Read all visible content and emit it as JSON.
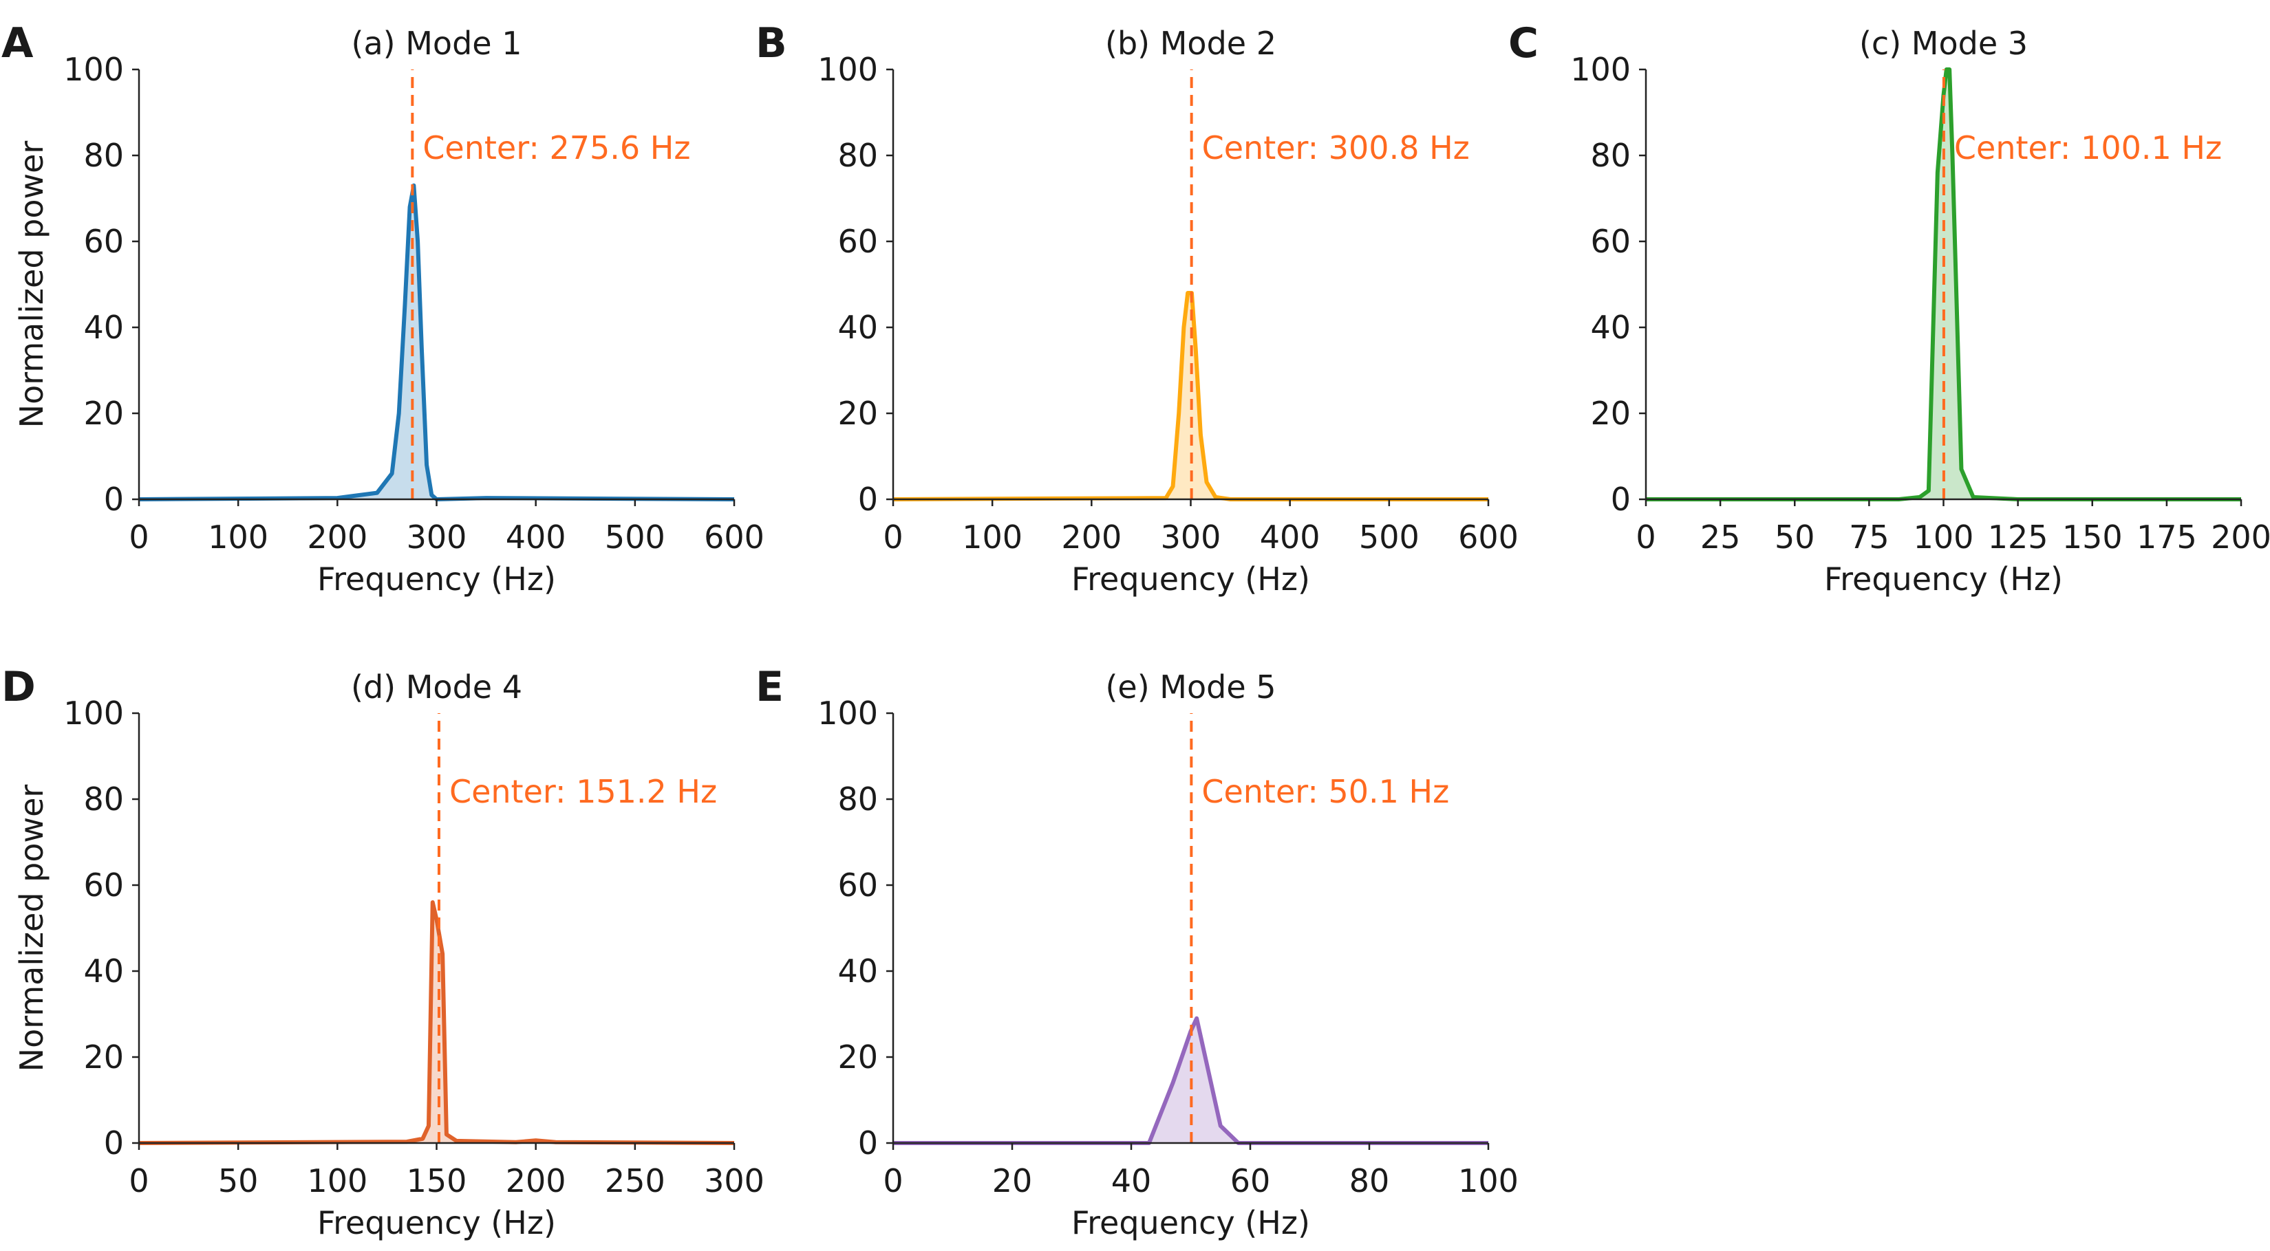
{
  "chart_data": [
    {
      "type": "area",
      "panel_letter": "A",
      "title": "(a) Mode 1",
      "xlabel": "Frequency (Hz)",
      "ylabel": "Normalized power",
      "xlim": [
        0,
        600
      ],
      "ylim": [
        0,
        100
      ],
      "xticks": [
        0,
        100,
        200,
        300,
        400,
        500,
        600
      ],
      "yticks": [
        0,
        20,
        40,
        60,
        80,
        100
      ],
      "color": "#1f77b4",
      "center_hz": 275.6,
      "center_label": "Center: 275.6 Hz",
      "points": [
        [
          0,
          0
        ],
        [
          200,
          0.3
        ],
        [
          240,
          1.5
        ],
        [
          255,
          6
        ],
        [
          262,
          20
        ],
        [
          268,
          45
        ],
        [
          273,
          68
        ],
        [
          277,
          73
        ],
        [
          281,
          60
        ],
        [
          285,
          35
        ],
        [
          290,
          8
        ],
        [
          295,
          1
        ],
        [
          300,
          0
        ],
        [
          350,
          0.3
        ],
        [
          600,
          0
        ]
      ]
    },
    {
      "type": "area",
      "panel_letter": "B",
      "title": "(b) Mode 2",
      "xlabel": "Frequency (Hz)",
      "ylabel": "",
      "xlim": [
        0,
        600
      ],
      "ylim": [
        0,
        100
      ],
      "xticks": [
        0,
        100,
        200,
        300,
        400,
        500,
        600
      ],
      "yticks": [
        0,
        20,
        40,
        60,
        80,
        100
      ],
      "color": "#ffa90f",
      "center_hz": 300.8,
      "center_label": "Center: 300.8 Hz",
      "points": [
        [
          0,
          0
        ],
        [
          275,
          0.3
        ],
        [
          282,
          3
        ],
        [
          288,
          20
        ],
        [
          293,
          40
        ],
        [
          297,
          48
        ],
        [
          301,
          48
        ],
        [
          305,
          35
        ],
        [
          310,
          15
        ],
        [
          316,
          4
        ],
        [
          325,
          0.5
        ],
        [
          340,
          0
        ],
        [
          600,
          0
        ]
      ]
    },
    {
      "type": "area",
      "panel_letter": "C",
      "title": "(c) Mode 3",
      "xlabel": "Frequency (Hz)",
      "ylabel": "",
      "xlim": [
        0,
        200
      ],
      "ylim": [
        0,
        100
      ],
      "xticks": [
        0,
        25,
        50,
        75,
        100,
        125,
        150,
        175,
        200
      ],
      "yticks": [
        0,
        20,
        40,
        60,
        80,
        100
      ],
      "color": "#2ca02c",
      "center_hz": 100.1,
      "center_label": "Center: 100.1 Hz",
      "points": [
        [
          0,
          0
        ],
        [
          85,
          0
        ],
        [
          92,
          0.5
        ],
        [
          95,
          2
        ],
        [
          98,
          76
        ],
        [
          100,
          94
        ],
        [
          101,
          100
        ],
        [
          102,
          100
        ],
        [
          103,
          80
        ],
        [
          106,
          7
        ],
        [
          110,
          0.5
        ],
        [
          125,
          0
        ],
        [
          200,
          0
        ]
      ]
    },
    {
      "type": "area",
      "panel_letter": "D",
      "title": "(d) Mode 4",
      "xlabel": "Frequency (Hz)",
      "ylabel": "Normalized power",
      "xlim": [
        0,
        300
      ],
      "ylim": [
        0,
        100
      ],
      "xticks": [
        0,
        50,
        100,
        150,
        200,
        250,
        300
      ],
      "yticks": [
        0,
        20,
        40,
        60,
        80,
        100
      ],
      "color": "#e0622a",
      "center_hz": 151.2,
      "center_label": "Center: 151.2 Hz",
      "points": [
        [
          0,
          0
        ],
        [
          135,
          0.3
        ],
        [
          143,
          1
        ],
        [
          146,
          4
        ],
        [
          148,
          56
        ],
        [
          150,
          52
        ],
        [
          153,
          44
        ],
        [
          155,
          2
        ],
        [
          160,
          0.5
        ],
        [
          190,
          0.2
        ],
        [
          200,
          0.6
        ],
        [
          210,
          0.2
        ],
        [
          300,
          0
        ]
      ]
    },
    {
      "type": "area",
      "panel_letter": "E",
      "title": "(e) Mode 5",
      "xlabel": "Frequency (Hz)",
      "ylabel": "",
      "xlim": [
        0,
        100
      ],
      "ylim": [
        0,
        100
      ],
      "xticks": [
        0,
        20,
        40,
        60,
        80,
        100
      ],
      "yticks": [
        0,
        20,
        40,
        60,
        80,
        100
      ],
      "color": "#9467bd",
      "center_hz": 50.1,
      "center_label": "Center: 50.1 Hz",
      "points": [
        [
          0,
          0
        ],
        [
          43,
          0
        ],
        [
          47,
          14
        ],
        [
          50,
          26
        ],
        [
          51,
          29
        ],
        [
          55,
          4
        ],
        [
          58,
          0
        ],
        [
          100,
          0
        ]
      ]
    }
  ],
  "center_line_color": "#ff6a20"
}
